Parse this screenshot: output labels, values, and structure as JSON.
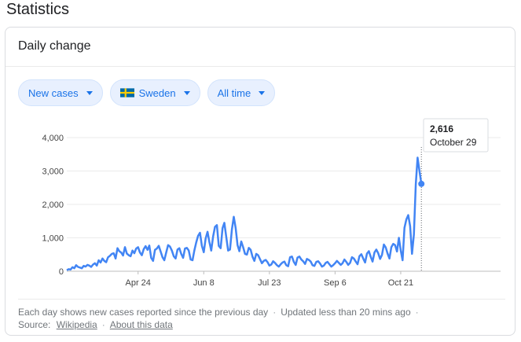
{
  "page": {
    "title": "Statistics"
  },
  "card": {
    "title": "Daily change"
  },
  "filters": {
    "metric": "New cases",
    "country": "Sweden",
    "range": "All time"
  },
  "colors": {
    "line": "#4285f4",
    "chip_text": "#1a73e8",
    "flag_blue": "#006aa7",
    "flag_yellow": "#fecc00"
  },
  "tooltip": {
    "value": "2,616",
    "date": "October 29"
  },
  "footer": {
    "note": "Each day shows new cases reported since the previous day",
    "updated": "Updated less than 20 mins ago",
    "source_label": "Source:",
    "source_link": "Wikipedia",
    "about_link": "About this data"
  },
  "chart_data": {
    "type": "line",
    "title": "",
    "xlabel": "",
    "ylabel": "",
    "ylim": [
      0,
      4000
    ],
    "yticks": [
      0,
      1000,
      2000,
      3000,
      4000
    ],
    "ytick_labels": [
      "0",
      "1,000",
      "2,000",
      "3,000",
      "4,000"
    ],
    "xticks": [
      "Apr 24",
      "Jun 8",
      "Jul 23",
      "Sep 6",
      "Oct 21"
    ],
    "grid": true,
    "series": [
      {
        "values": [
          30,
          60,
          50,
          120,
          90,
          180,
          130,
          110,
          90,
          160,
          140,
          190,
          170,
          130,
          200,
          240,
          170,
          330,
          260,
          380,
          310,
          270,
          420,
          460,
          520,
          540,
          380,
          690,
          600,
          560,
          470,
          720,
          530,
          480,
          450,
          620,
          540,
          680,
          720,
          560,
          480,
          660,
          750,
          640,
          770,
          400,
          310,
          640,
          680,
          760,
          590,
          420,
          330,
          560,
          780,
          740,
          620,
          450,
          380,
          650,
          690,
          520,
          400,
          680,
          700,
          620,
          350,
          330,
          620,
          860,
          1060,
          1150,
          760,
          570,
          980,
          1180,
          880,
          620,
          1040,
          1330,
          1380,
          760,
          690,
          1290,
          1450,
          1030,
          620,
          650,
          1250,
          1630,
          1290,
          780,
          600,
          890,
          720,
          520,
          500,
          700,
          640,
          430,
          310,
          520,
          480,
          360,
          240,
          310,
          340,
          270,
          170,
          200,
          300,
          250,
          180,
          140,
          210,
          260,
          290,
          180,
          150,
          420,
          440,
          280,
          190,
          410,
          440,
          350,
          300,
          220,
          370,
          340,
          290,
          180,
          160,
          280,
          300,
          230,
          140,
          170,
          250,
          280,
          210,
          140,
          180,
          240,
          310,
          250,
          190,
          240,
          350,
          280,
          190,
          250,
          420,
          380,
          290,
          210,
          450,
          510,
          380,
          260,
          530,
          600,
          430,
          290,
          560,
          650,
          540,
          370,
          490,
          800,
          710,
          530,
          380,
          720,
          820,
          780,
          590,
          1000,
          620,
          330,
          1300,
          1550,
          1680,
          1350,
          520,
          1100,
          2600,
          3400,
          3000,
          2616
        ]
      }
    ],
    "x_domain": [
      0,
      222
    ],
    "x_tick_positions": [
      38,
      73,
      108,
      143,
      178
    ]
  }
}
